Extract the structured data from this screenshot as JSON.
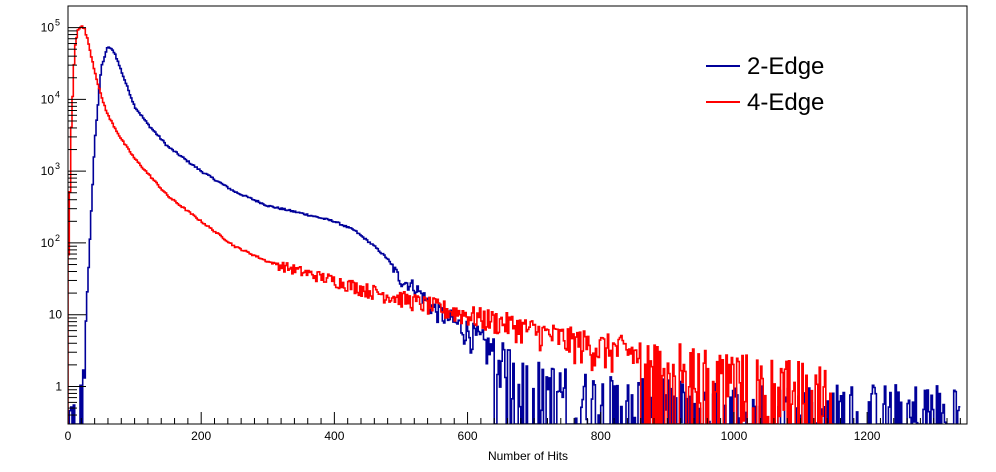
{
  "chart_data": {
    "type": "line",
    "title": "",
    "xlabel": "Number of Hits",
    "ylabel": "",
    "xlim": [
      0,
      1350
    ],
    "ylim": [
      0.3,
      200000
    ],
    "y_scale": "log",
    "grid": false,
    "legend_position": "top-right",
    "x_ticks": [
      0,
      200,
      400,
      600,
      800,
      1000,
      1200
    ],
    "y_ticks": [
      {
        "value": 1,
        "label": "1"
      },
      {
        "value": 10,
        "label": "10"
      },
      {
        "value": 100,
        "label": "10",
        "exp": "2"
      },
      {
        "value": 1000,
        "label": "10",
        "exp": "3"
      },
      {
        "value": 10000,
        "label": "10",
        "exp": "4"
      },
      {
        "value": 100000,
        "label": "10",
        "exp": "5"
      }
    ],
    "series": [
      {
        "name": "2-Edge",
        "color": "#000099",
        "x": [
          0,
          10,
          20,
          25,
          30,
          40,
          50,
          60,
          70,
          80,
          100,
          120,
          150,
          200,
          250,
          300,
          350,
          400,
          430,
          460,
          480,
          500,
          520,
          550,
          600,
          650,
          700,
          750,
          800,
          850,
          900,
          1000,
          1100,
          1200,
          1340
        ],
        "y": [
          0.3,
          0.3,
          0.5,
          2,
          30,
          2500,
          28000,
          55000,
          45000,
          25000,
          8000,
          4500,
          2200,
          1000,
          520,
          330,
          260,
          200,
          150,
          90,
          60,
          30,
          25,
          12,
          6,
          2.5,
          1.2,
          0.8,
          0.6,
          0.5,
          0.5,
          0.4,
          0.4,
          0.4,
          0.4
        ]
      },
      {
        "name": "4-Edge",
        "color": "#ff0000",
        "x": [
          0,
          5,
          10,
          15,
          20,
          25,
          30,
          40,
          50,
          60,
          80,
          100,
          150,
          200,
          250,
          300,
          350,
          400,
          450,
          500,
          550,
          600,
          650,
          700,
          750,
          800,
          850,
          900,
          950,
          1000,
          1050,
          1100,
          1150
        ],
        "y": [
          25,
          4000,
          50000,
          95000,
          105000,
          95000,
          65000,
          25000,
          11000,
          6000,
          2800,
          1500,
          450,
          200,
          90,
          55,
          40,
          30,
          22,
          17,
          13,
          10,
          8,
          6,
          4.5,
          3.5,
          3,
          2.5,
          2,
          1.6,
          1.3,
          1.1,
          0.8
        ]
      }
    ]
  }
}
